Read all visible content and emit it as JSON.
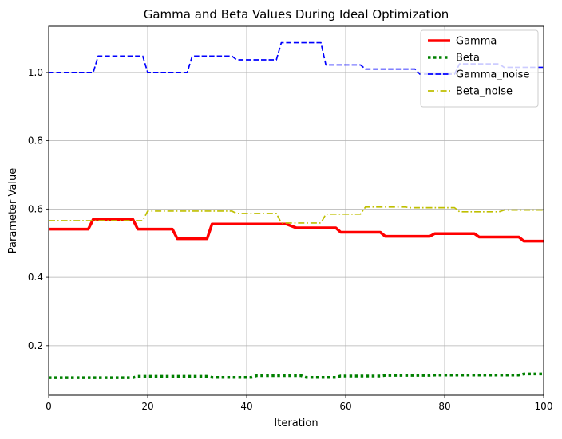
{
  "chart_data": {
    "type": "line",
    "title": "Gamma and Beta Values During Ideal Optimization",
    "xlabel": "Iteration",
    "ylabel": "Parameter Value",
    "xlim": [
      0,
      100
    ],
    "ylim": [
      0.055,
      1.135
    ],
    "xticks": [
      0,
      20,
      40,
      60,
      80,
      100
    ],
    "yticks": [
      0.2,
      0.4,
      0.6,
      0.8,
      1.0
    ],
    "xtick_labels": [
      "0",
      "20",
      "40",
      "60",
      "80",
      "100"
    ],
    "ytick_labels": [
      "0.2",
      "0.4",
      "0.6",
      "0.8",
      "1.0"
    ],
    "grid": true,
    "legend_position": "top-right",
    "series": [
      {
        "name": "Gamma",
        "color": "#ff0000",
        "style": "solid",
        "points": [
          [
            0,
            0.541
          ],
          [
            8,
            0.541
          ],
          [
            9,
            0.57
          ],
          [
            17,
            0.57
          ],
          [
            18,
            0.541
          ],
          [
            25,
            0.541
          ],
          [
            26,
            0.513
          ],
          [
            32,
            0.513
          ],
          [
            33,
            0.556
          ],
          [
            48,
            0.556
          ],
          [
            50,
            0.545
          ],
          [
            58,
            0.545
          ],
          [
            59,
            0.532
          ],
          [
            67,
            0.532
          ],
          [
            68,
            0.52
          ],
          [
            77,
            0.52
          ],
          [
            78,
            0.528
          ],
          [
            86,
            0.528
          ],
          [
            87,
            0.518
          ],
          [
            95,
            0.518
          ],
          [
            96,
            0.506
          ],
          [
            100,
            0.506
          ]
        ]
      },
      {
        "name": "Beta",
        "color": "#008000",
        "style": "dotted",
        "points": [
          [
            0,
            0.106
          ],
          [
            17,
            0.106
          ],
          [
            18,
            0.11
          ],
          [
            32,
            0.11
          ],
          [
            33,
            0.107
          ],
          [
            41,
            0.107
          ],
          [
            42,
            0.112
          ],
          [
            51,
            0.112
          ],
          [
            52,
            0.107
          ],
          [
            58,
            0.107
          ],
          [
            59,
            0.111
          ],
          [
            67,
            0.111
          ],
          [
            68,
            0.113
          ],
          [
            77,
            0.113
          ],
          [
            78,
            0.114
          ],
          [
            95,
            0.114
          ],
          [
            96,
            0.117
          ],
          [
            100,
            0.117
          ]
        ]
      },
      {
        "name": "Gamma_noise",
        "color": "#0000ff",
        "style": "dashed",
        "points": [
          [
            0,
            1.0
          ],
          [
            9,
            1.0
          ],
          [
            10,
            1.048
          ],
          [
            19,
            1.048
          ],
          [
            20,
            1.0
          ],
          [
            28,
            1.0
          ],
          [
            29,
            1.048
          ],
          [
            37,
            1.048
          ],
          [
            38,
            1.037
          ],
          [
            46,
            1.037
          ],
          [
            47,
            1.087
          ],
          [
            55,
            1.087
          ],
          [
            56,
            1.022
          ],
          [
            63,
            1.022
          ],
          [
            64,
            1.01
          ],
          [
            74,
            1.01
          ],
          [
            75,
            0.995
          ],
          [
            82,
            0.995
          ],
          [
            83,
            1.025
          ],
          [
            91,
            1.025
          ],
          [
            92,
            1.015
          ],
          [
            100,
            1.015
          ]
        ]
      },
      {
        "name": "Beta_noise",
        "color": "#bfbf00",
        "style": "dashdot",
        "points": [
          [
            0,
            0.566
          ],
          [
            19,
            0.566
          ],
          [
            20,
            0.594
          ],
          [
            37,
            0.594
          ],
          [
            38,
            0.587
          ],
          [
            46,
            0.587
          ],
          [
            47,
            0.559
          ],
          [
            55,
            0.559
          ],
          [
            56,
            0.585
          ],
          [
            63,
            0.585
          ],
          [
            64,
            0.606
          ],
          [
            72,
            0.606
          ],
          [
            73,
            0.604
          ],
          [
            82,
            0.604
          ],
          [
            83,
            0.592
          ],
          [
            91,
            0.592
          ],
          [
            92,
            0.597
          ],
          [
            100,
            0.597
          ]
        ]
      }
    ]
  }
}
